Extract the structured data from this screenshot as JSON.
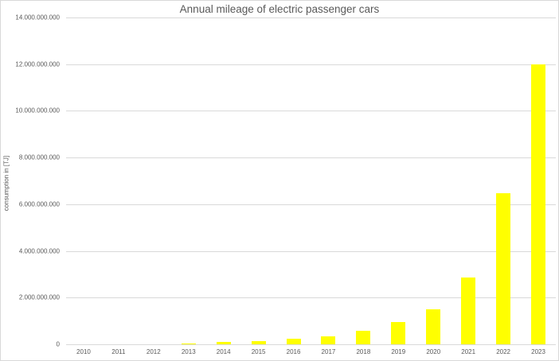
{
  "chart_data": {
    "type": "bar",
    "title": "Annual mileage of electric passenger cars",
    "xlabel": "",
    "ylabel": "consumption in [TJ]",
    "categories": [
      "2010",
      "2011",
      "2012",
      "2013",
      "2014",
      "2015",
      "2016",
      "2017",
      "2018",
      "2019",
      "2020",
      "2021",
      "2022",
      "2023"
    ],
    "values": [
      0,
      0,
      0,
      50000000,
      90000000,
      150000000,
      240000000,
      340000000,
      580000000,
      940000000,
      1500000000,
      2860000000,
      6470000000,
      12000000000
    ],
    "ylim": [
      0,
      14000000000
    ],
    "yticks": [
      0,
      2000000000,
      4000000000,
      6000000000,
      8000000000,
      10000000000,
      12000000000,
      14000000000
    ],
    "ytick_labels": [
      "0",
      "2.000.000.000",
      "4.000.000.000",
      "6.000.000.000",
      "8.000.000.000",
      "10.000.000.000",
      "12.000.000.000",
      "14.000.000.000"
    ],
    "grid": true,
    "legend": null,
    "bar_color": "#ffff00",
    "grid_color": "#d9d9d9"
  }
}
